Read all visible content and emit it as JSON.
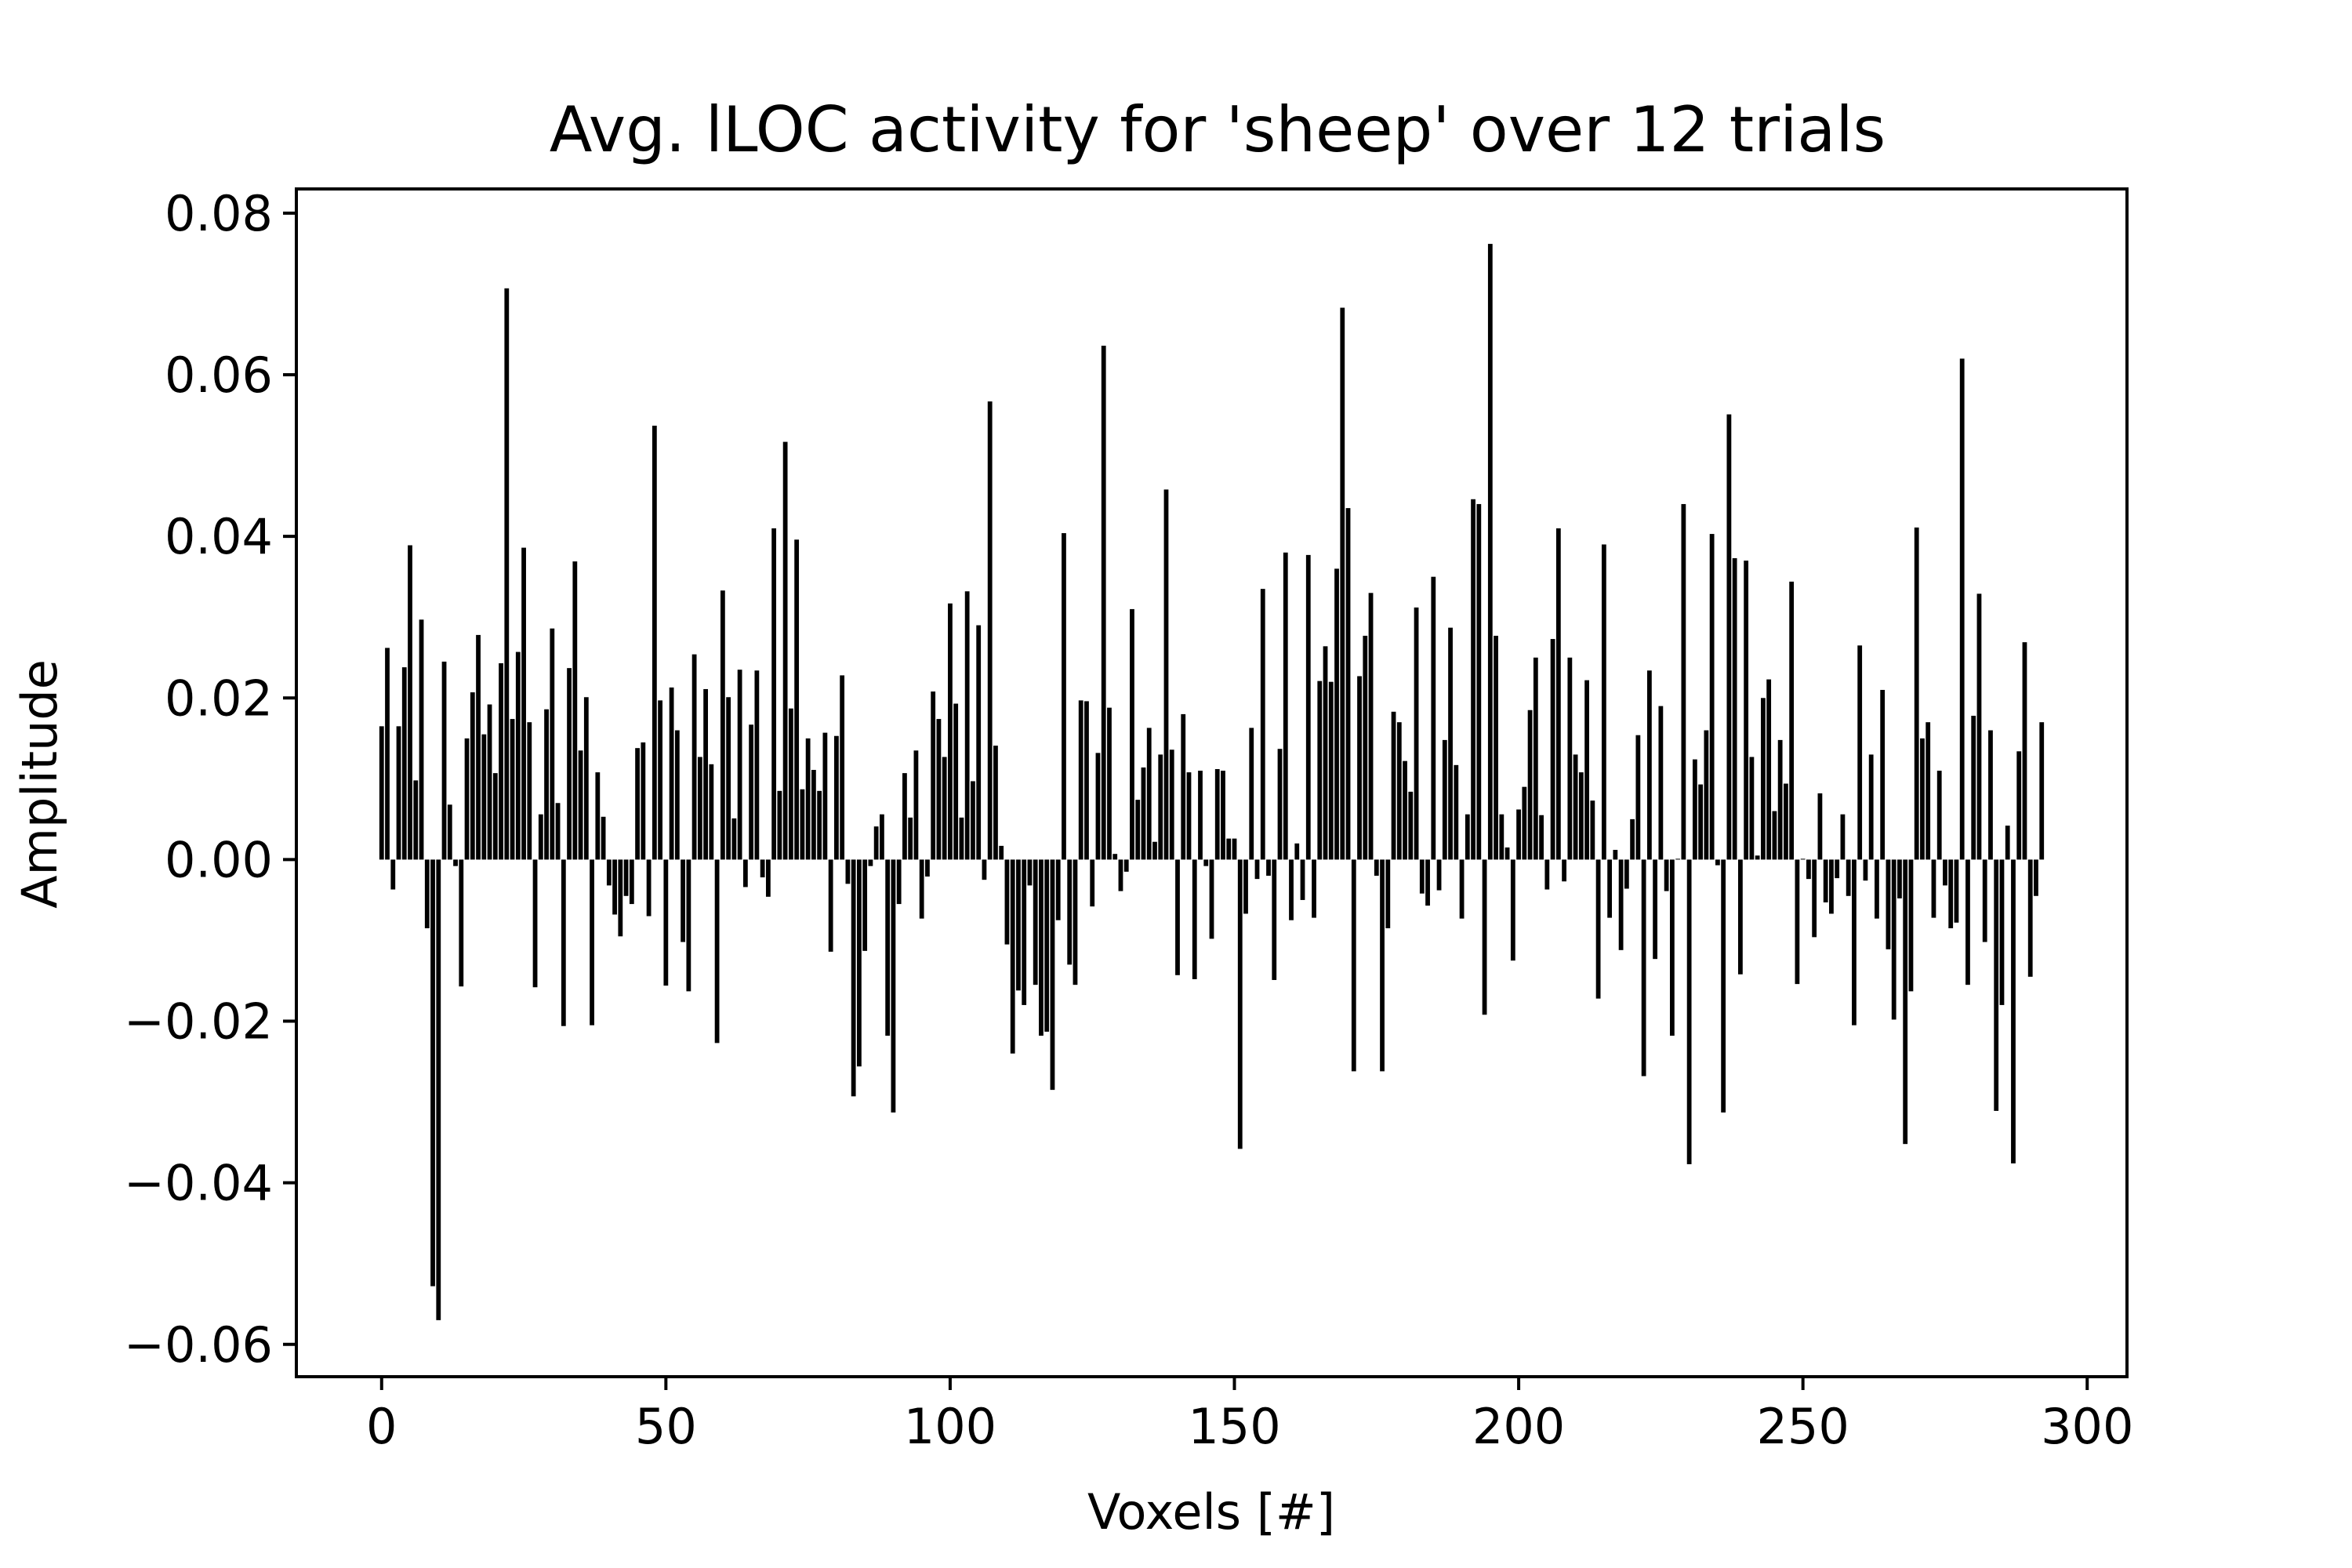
{
  "chart_data": {
    "type": "bar",
    "title": "Avg. lLOC activity for 'sheep' over 12 trials",
    "xlabel": "Voxels [#]",
    "ylabel": "Amplitude",
    "xlim": [
      -15,
      307
    ],
    "ylim": [
      -0.064,
      0.083
    ],
    "xticks": [
      0,
      50,
      100,
      150,
      200,
      250,
      300
    ],
    "yticks": [
      -0.06,
      -0.04,
      -0.02,
      0.0,
      0.02,
      0.04,
      0.06,
      0.08
    ],
    "xtick_labels": [
      "0",
      "50",
      "100",
      "150",
      "200",
      "250",
      "300"
    ],
    "ytick_labels": [
      "−0.06",
      "−0.04",
      "−0.02",
      "0.00",
      "0.02",
      "0.04",
      "0.06",
      "0.08"
    ],
    "grid": false,
    "legend": "none",
    "bar_color": "#000000",
    "x": [
      0,
      1,
      2,
      3,
      4,
      5,
      6,
      7,
      8,
      9,
      10,
      11,
      12,
      13,
      14,
      15,
      16,
      17,
      18,
      19,
      20,
      21,
      22,
      23,
      24,
      25,
      26,
      27,
      28,
      29,
      30,
      31,
      32,
      33,
      34,
      35,
      36,
      37,
      38,
      39,
      40,
      41,
      42,
      43,
      44,
      45,
      46,
      47,
      48,
      49,
      50,
      51,
      52,
      53,
      54,
      55,
      56,
      57,
      58,
      59,
      60,
      61,
      62,
      63,
      64,
      65,
      66,
      67,
      68,
      69,
      70,
      71,
      72,
      73,
      74,
      75,
      76,
      77,
      78,
      79,
      80,
      81,
      82,
      83,
      84,
      85,
      86,
      87,
      88,
      89,
      90,
      91,
      92,
      93,
      94,
      95,
      96,
      97,
      98,
      99,
      100,
      101,
      102,
      103,
      104,
      105,
      106,
      107,
      108,
      109,
      110,
      111,
      112,
      113,
      114,
      115,
      116,
      117,
      118,
      119,
      120,
      121,
      122,
      123,
      124,
      125,
      126,
      127,
      128,
      129,
      130,
      131,
      132,
      133,
      134,
      135,
      136,
      137,
      138,
      139,
      140,
      141,
      142,
      143,
      144,
      145,
      146,
      147,
      148,
      149,
      150,
      151,
      152,
      153,
      154,
      155,
      156,
      157,
      158,
      159,
      160,
      161,
      162,
      163,
      164,
      165,
      166,
      167,
      168,
      169,
      170,
      171,
      172,
      173,
      174,
      175,
      176,
      177,
      178,
      179,
      180,
      181,
      182,
      183,
      184,
      185,
      186,
      187,
      188,
      189,
      190,
      191,
      192,
      193,
      194,
      195,
      196,
      197,
      198,
      199,
      200,
      201,
      202,
      203,
      204,
      205,
      206,
      207,
      208,
      209,
      210,
      211,
      212,
      213,
      214,
      215,
      216,
      217,
      218,
      219,
      220,
      221,
      222,
      223,
      224,
      225,
      226,
      227,
      228,
      229,
      230,
      231,
      232,
      233,
      234,
      235,
      236,
      237,
      238,
      239,
      240,
      241,
      242,
      243,
      244,
      245,
      246,
      247,
      248,
      249,
      250,
      251,
      252,
      253,
      254,
      255,
      256,
      257,
      258,
      259,
      260,
      261,
      262,
      263,
      264,
      265,
      266,
      267,
      268,
      269,
      270,
      271,
      272,
      273,
      274,
      275,
      276,
      277,
      278,
      279,
      280,
      281,
      282,
      283,
      284,
      285,
      286,
      287,
      288,
      289,
      290,
      291,
      292
    ],
    "values": [
      0.0165,
      0.0262,
      -0.0037,
      0.0165,
      0.0238,
      0.0389,
      0.0098,
      0.0297,
      -0.0085,
      -0.0528,
      -0.057,
      0.0245,
      0.0068,
      -0.0008,
      -0.0157,
      0.015,
      0.0207,
      0.0278,
      0.0155,
      0.0192,
      0.0107,
      0.0243,
      0.0707,
      0.0174,
      0.0257,
      0.0386,
      0.017,
      -0.0158,
      0.0056,
      0.0186,
      0.0286,
      0.007,
      -0.0206,
      0.0237,
      0.0369,
      0.0135,
      0.0201,
      -0.0205,
      0.0108,
      0.0053,
      -0.0032,
      -0.0068,
      -0.0095,
      -0.0045,
      -0.0055,
      0.0138,
      0.0145,
      -0.007,
      0.0537,
      0.0197,
      -0.0156,
      0.0213,
      0.016,
      -0.0102,
      -0.0163,
      0.0254,
      0.0127,
      0.0211,
      0.0118,
      -0.0227,
      0.0333,
      0.0201,
      0.0051,
      0.0235,
      -0.0034,
      0.0167,
      0.0234,
      -0.0022,
      -0.0046,
      0.041,
      0.0085,
      0.0517,
      0.0187,
      0.0396,
      0.0087,
      0.015,
      0.0111,
      0.0085,
      0.0157,
      -0.0114,
      0.0153,
      0.0228,
      -0.003,
      -0.0293,
      -0.0256,
      -0.0113,
      -0.0008,
      0.0041,
      0.0056,
      -0.0218,
      -0.0313,
      -0.0055,
      0.0107,
      0.0052,
      0.0135,
      -0.0073,
      -0.0021,
      0.0208,
      0.0174,
      0.0127,
      0.0317,
      0.0193,
      0.0052,
      0.0332,
      0.0097,
      0.029,
      -0.0025,
      0.0567,
      0.0141,
      0.0017,
      -0.0105,
      -0.024,
      -0.0162,
      -0.018,
      -0.0032,
      -0.0155,
      -0.0218,
      -0.0213,
      -0.0285,
      -0.0075,
      0.0404,
      -0.013,
      -0.0155,
      0.0197,
      0.0196,
      -0.0058,
      0.0132,
      0.0636,
      0.0188,
      0.0007,
      -0.0039,
      -0.0015,
      0.031,
      0.0074,
      0.0114,
      0.0163,
      0.0022,
      0.013,
      0.0458,
      0.0136,
      -0.0143,
      0.018,
      0.0108,
      -0.0148,
      0.011,
      -0.0008,
      -0.0098,
      0.0112,
      0.011,
      0.0026,
      0.0026,
      -0.0358,
      -0.0067,
      0.0163,
      -0.0024,
      0.0335,
      -0.002,
      -0.0149,
      0.0137,
      0.038,
      -0.0075,
      0.002,
      -0.005,
      0.0377,
      -0.0072,
      0.0221,
      0.0264,
      0.022,
      0.036,
      0.0683,
      0.0435,
      -0.0262,
      0.0227,
      0.0277,
      0.033,
      -0.002,
      -0.0262,
      -0.0085,
      0.0183,
      0.017,
      0.0122,
      0.0084,
      0.0312,
      -0.0042,
      -0.0057,
      0.035,
      -0.0038,
      0.0148,
      0.0287,
      0.0117,
      -0.0073,
      0.0056,
      0.0446,
      0.044,
      -0.0192,
      0.0762,
      0.0277,
      0.0056,
      0.0015,
      -0.0125,
      0.0062,
      0.009,
      0.0185,
      0.025,
      0.0055,
      -0.0037,
      0.0273,
      0.041,
      -0.0027,
      0.025,
      0.013,
      0.0108,
      0.0222,
      0.0073,
      -0.0172,
      0.039,
      -0.0072,
      0.0012,
      -0.0112,
      -0.0036,
      0.005,
      0.0154,
      -0.0268,
      0.0234,
      -0.0123,
      0.019,
      -0.0039,
      -0.0218,
      0.0001,
      0.044,
      -0.0377,
      0.0124,
      0.0093,
      0.016,
      0.0403,
      -0.0007,
      -0.0313,
      0.0551,
      0.0373,
      -0.0142,
      0.037,
      0.0127,
      0.0005,
      0.02,
      0.0223,
      0.006,
      0.0148,
      0.0094,
      0.0344,
      -0.0154,
      0.0001,
      -0.0024,
      -0.0096,
      0.0082,
      -0.0053,
      -0.0067,
      -0.0023,
      0.0056,
      -0.0045,
      -0.0205,
      0.0265,
      -0.0026,
      0.013,
      -0.0073,
      0.021,
      -0.0111,
      -0.0198,
      -0.0048,
      -0.0352,
      -0.0163,
      0.0411,
      0.015,
      0.017,
      -0.0072,
      0.011,
      -0.0032,
      -0.0085,
      -0.0078,
      0.062,
      -0.0155,
      0.0178,
      0.0329,
      -0.0102,
      0.016,
      -0.0311,
      -0.018,
      0.0042,
      -0.0376,
      0.0134,
      0.0269,
      -0.0145,
      -0.0045,
      0.017
    ]
  }
}
